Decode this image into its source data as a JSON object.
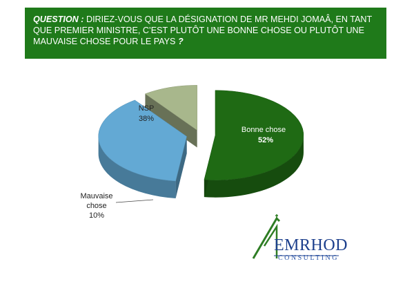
{
  "question": {
    "prefix": "QUESTION :",
    "body": " DIRIEZ-VOUS QUE LA DÉSIGNATION DE MR  MEHDI  JOMAÂ, EN TANT QUE PREMIER MINISTRE, C’EST PLUTÔT UNE BONNE CHOSE OU PLUTÔT UNE MAUVAISE CHOSE POUR LE PAYS",
    "suffix": " ?"
  },
  "colors": {
    "banner": "#1f7a1a",
    "bonne_chose": "#1f6a14",
    "nsp": "#63a9d4",
    "mauvaise_chose": "#a8b78c"
  },
  "chart_data": {
    "type": "pie",
    "title": "",
    "slices": [
      {
        "label": "Bonne chose",
        "value": 52,
        "value_text": "52%",
        "color": "#1f6a14"
      },
      {
        "label": "NSP",
        "value": 38,
        "value_text": "38%",
        "color": "#63a9d4"
      },
      {
        "label": "Mauvaise chose",
        "label_lines": [
          "Mauvaise",
          "chose"
        ],
        "value": 10,
        "value_text": "10%",
        "color": "#a8b78c"
      }
    ],
    "style": "3d exploded pie"
  },
  "logo": {
    "name": "EMRHOD",
    "subtitle": "CONSULTING"
  }
}
